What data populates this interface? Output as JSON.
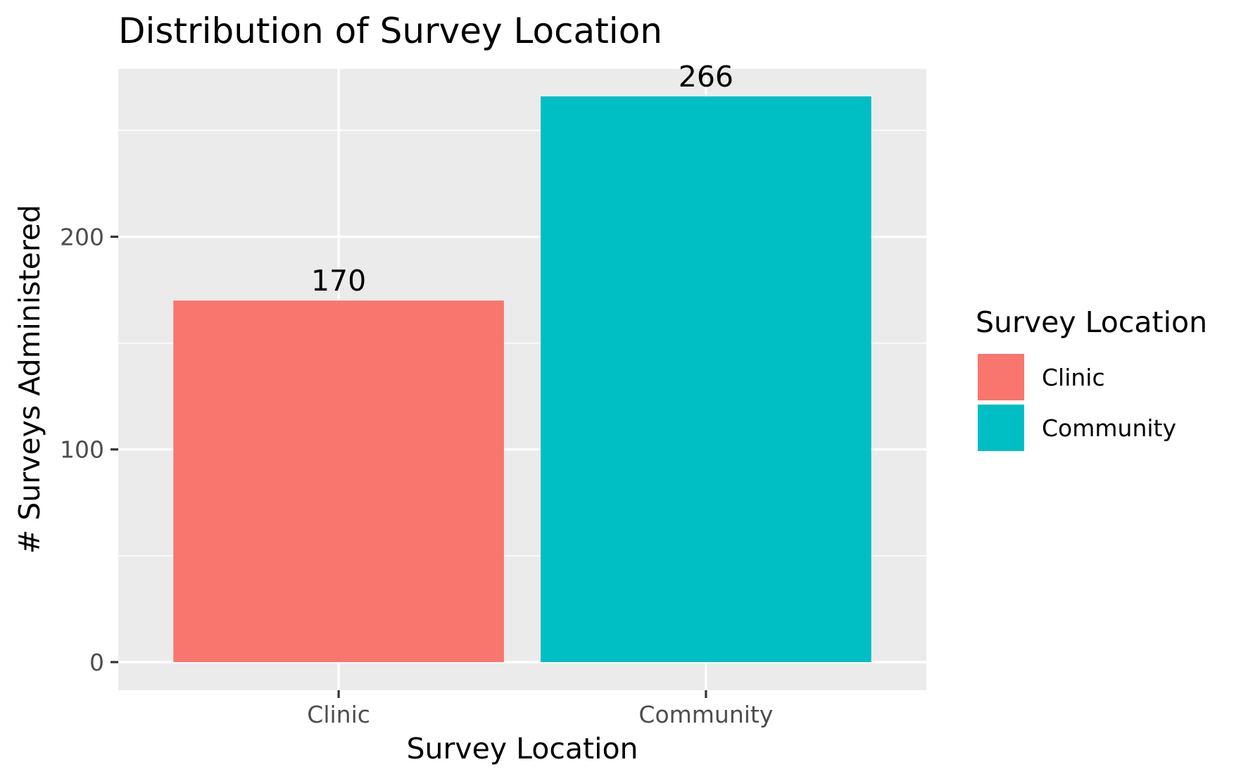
{
  "chart_data": {
    "type": "bar",
    "title": "Distribution of Survey Location",
    "xlabel": "Survey Location",
    "ylabel": "# Surveys Administered",
    "categories": [
      "Clinic",
      "Community"
    ],
    "values": [
      170,
      266
    ],
    "value_labels": [
      "170",
      "266"
    ],
    "ylim": [
      -13,
      266
    ],
    "yticks": [
      0,
      100,
      200
    ],
    "ytick_labels": [
      "0",
      "100",
      "200"
    ],
    "grid": true,
    "legend": {
      "title": "Survey Location",
      "position": "right",
      "entries": [
        "Clinic",
        "Community"
      ]
    },
    "colors": {
      "Clinic": "#F8766D",
      "Community": "#00BFC4",
      "panel_background": "#EBEBEB",
      "grid": "#FFFFFF",
      "axis_text": "#4D4D4D",
      "text": "#000000"
    }
  }
}
